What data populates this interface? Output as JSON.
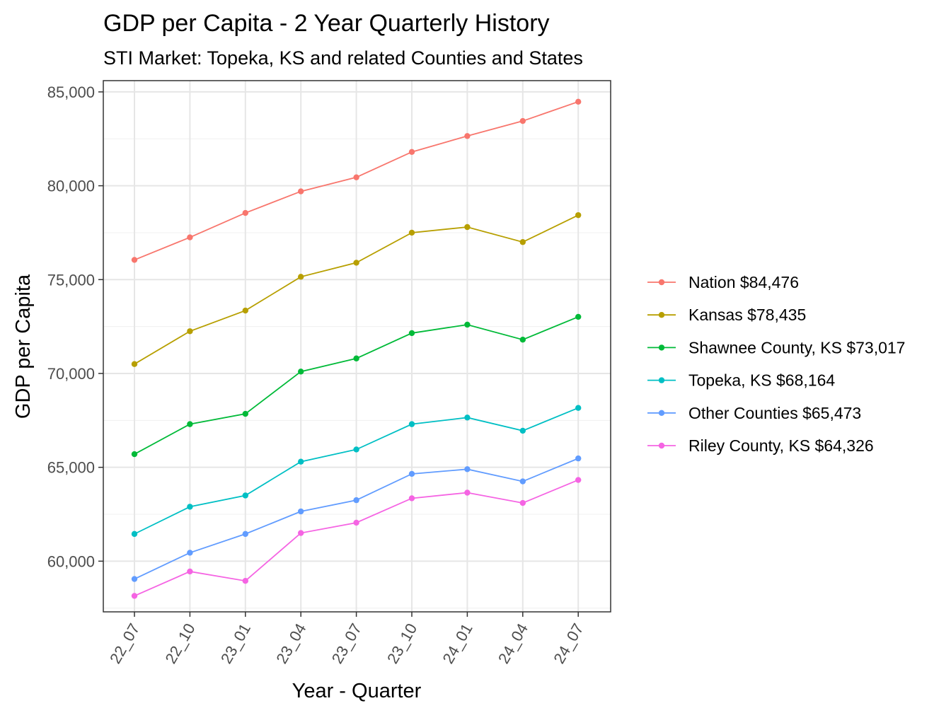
{
  "chart_data": {
    "type": "line",
    "title": "GDP per Capita - 2 Year Quarterly History",
    "subtitle": "STI Market: Topeka, KS and related Counties and States",
    "xlabel": "Year - Quarter",
    "ylabel": "GDP per Capita",
    "categories": [
      "22_07",
      "22_10",
      "23_01",
      "23_04",
      "23_07",
      "23_10",
      "24_01",
      "24_04",
      "24_07"
    ],
    "ylim": [
      57300,
      85600
    ],
    "yticks": [
      60000,
      65000,
      70000,
      75000,
      80000,
      85000
    ],
    "ytick_labels": [
      "60,000",
      "65,000",
      "70,000",
      "75,000",
      "80,000",
      "85,000"
    ],
    "grid": true,
    "legend_position": "right",
    "series": [
      {
        "name": "Nation $84,476",
        "color": "#F8766D",
        "values": [
          76050,
          77250,
          78550,
          79700,
          80450,
          81800,
          82650,
          83450,
          84476
        ]
      },
      {
        "name": "Kansas $78,435",
        "color": "#B79F00",
        "values": [
          70500,
          72250,
          73350,
          75150,
          75900,
          77500,
          77800,
          77000,
          78435
        ]
      },
      {
        "name": "Shawnee County, KS $73,017",
        "color": "#00BA38",
        "values": [
          65700,
          67300,
          67850,
          70100,
          70800,
          72150,
          72600,
          71800,
          73017
        ]
      },
      {
        "name": "Topeka, KS $68,164",
        "color": "#00BFC4",
        "values": [
          61450,
          62900,
          63500,
          65300,
          65950,
          67300,
          67650,
          66950,
          68164
        ]
      },
      {
        "name": "Other Counties $65,473",
        "color": "#619CFF",
        "values": [
          59050,
          60450,
          61450,
          62650,
          63250,
          64650,
          64900,
          64250,
          65473
        ]
      },
      {
        "name": "Riley County, KS $64,326",
        "color": "#F564E3",
        "values": [
          58150,
          59450,
          58950,
          61500,
          62050,
          63350,
          63650,
          63100,
          64326
        ]
      }
    ]
  }
}
